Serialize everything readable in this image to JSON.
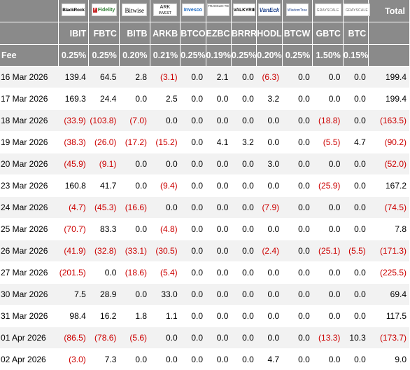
{
  "providers": [
    {
      "name": "BlackRock"
    },
    {
      "name": "Fidelity"
    },
    {
      "name": "Bitwise"
    },
    {
      "name": "ARK",
      "sub": "INVEST"
    },
    {
      "name": "Invesco"
    },
    {
      "name": "FRANKLIN TEMPLETON"
    },
    {
      "name": "VALKYRIE"
    },
    {
      "name": "VanEck"
    },
    {
      "name": "WisdomTree"
    },
    {
      "name": "GRAYSCALE"
    },
    {
      "name": "GRAYSCALE"
    }
  ],
  "total_label": "Total",
  "tickers": [
    "IBIT",
    "FBTC",
    "BITB",
    "ARKB",
    "BTCO",
    "EZBC",
    "BRRR",
    "HODL",
    "BTCW",
    "GBTC",
    "BTC"
  ],
  "fee_label": "Fee",
  "fees": [
    "0.25%",
    "0.25%",
    "0.20%",
    "0.21%",
    "0.25%",
    "0.19%",
    "0.25%",
    "0.20%",
    "0.25%",
    "1.50%",
    "0.15%"
  ],
  "rows": [
    {
      "date": "16 Mar 2026",
      "values": [
        "139.4",
        "64.5",
        "2.8",
        "(3.1)",
        "0.0",
        "2.1",
        "0.0",
        "(6.3)",
        "0.0",
        "0.0",
        "0.0"
      ],
      "total": "199.4"
    },
    {
      "date": "17 Mar 2026",
      "values": [
        "169.3",
        "24.4",
        "0.0",
        "2.5",
        "0.0",
        "0.0",
        "0.0",
        "3.2",
        "0.0",
        "0.0",
        "0.0"
      ],
      "total": "199.4"
    },
    {
      "date": "18 Mar 2026",
      "values": [
        "(33.9)",
        "(103.8)",
        "(7.0)",
        "0.0",
        "0.0",
        "0.0",
        "0.0",
        "0.0",
        "0.0",
        "(18.8)",
        "0.0"
      ],
      "total": "(163.5)"
    },
    {
      "date": "19 Mar 2026",
      "values": [
        "(38.3)",
        "(26.0)",
        "(17.2)",
        "(15.2)",
        "0.0",
        "4.1",
        "3.2",
        "0.0",
        "0.0",
        "(5.5)",
        "4.7"
      ],
      "total": "(90.2)"
    },
    {
      "date": "20 Mar 2026",
      "values": [
        "(45.9)",
        "(9.1)",
        "0.0",
        "0.0",
        "0.0",
        "0.0",
        "0.0",
        "3.0",
        "0.0",
        "0.0",
        "0.0"
      ],
      "total": "(52.0)"
    },
    {
      "date": "23 Mar 2026",
      "values": [
        "160.8",
        "41.7",
        "0.0",
        "(9.4)",
        "0.0",
        "0.0",
        "0.0",
        "0.0",
        "0.0",
        "(25.9)",
        "0.0"
      ],
      "total": "167.2"
    },
    {
      "date": "24 Mar 2026",
      "values": [
        "(4.7)",
        "(45.3)",
        "(16.6)",
        "0.0",
        "0.0",
        "0.0",
        "0.0",
        "(7.9)",
        "0.0",
        "0.0",
        "0.0"
      ],
      "total": "(74.5)"
    },
    {
      "date": "25 Mar 2026",
      "values": [
        "(70.7)",
        "83.3",
        "0.0",
        "(4.8)",
        "0.0",
        "0.0",
        "0.0",
        "0.0",
        "0.0",
        "0.0",
        "0.0"
      ],
      "total": "7.8"
    },
    {
      "date": "26 Mar 2026",
      "values": [
        "(41.9)",
        "(32.8)",
        "(33.1)",
        "(30.5)",
        "0.0",
        "0.0",
        "0.0",
        "(2.4)",
        "0.0",
        "(25.1)",
        "(5.5)"
      ],
      "total": "(171.3)"
    },
    {
      "date": "27 Mar 2026",
      "values": [
        "(201.5)",
        "0.0",
        "(18.6)",
        "(5.4)",
        "0.0",
        "0.0",
        "0.0",
        "0.0",
        "0.0",
        "0.0",
        "0.0"
      ],
      "total": "(225.5)"
    },
    {
      "date": "30 Mar 2026",
      "values": [
        "7.5",
        "28.9",
        "0.0",
        "33.0",
        "0.0",
        "0.0",
        "0.0",
        "0.0",
        "0.0",
        "0.0",
        "0.0"
      ],
      "total": "69.4"
    },
    {
      "date": "31 Mar 2026",
      "values": [
        "98.4",
        "16.2",
        "1.8",
        "1.1",
        "0.0",
        "0.0",
        "0.0",
        "0.0",
        "0.0",
        "0.0",
        "0.0"
      ],
      "total": "117.5"
    },
    {
      "date": "01 Apr 2026",
      "values": [
        "(86.5)",
        "(78.6)",
        "(5.6)",
        "0.0",
        "0.0",
        "0.0",
        "0.0",
        "0.0",
        "0.0",
        "(13.3)",
        "10.3"
      ],
      "total": "(173.7)"
    },
    {
      "date": "02 Apr 2026",
      "values": [
        "(3.0)",
        "7.3",
        "0.0",
        "0.0",
        "0.0",
        "0.0",
        "0.0",
        "4.7",
        "0.0",
        "0.0",
        "0.0"
      ],
      "total": "9.0"
    }
  ]
}
